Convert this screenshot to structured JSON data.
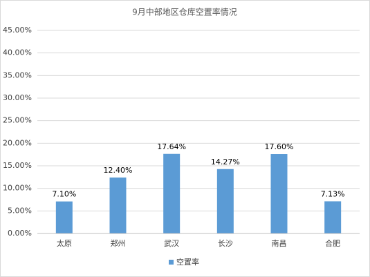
{
  "chart_data": {
    "type": "bar",
    "title": "9月中部地区仓库空置率情况",
    "categories": [
      "太原",
      "郑州",
      "武汉",
      "长沙",
      "南昌",
      "合肥"
    ],
    "series": [
      {
        "name": "空置率",
        "color": "#5b9bd5",
        "values": [
          7.1,
          12.4,
          17.64,
          14.27,
          17.6,
          7.13
        ],
        "value_labels": [
          "7.10%",
          "12.40%",
          "17.64%",
          "14.27%",
          "17.60%",
          "7.13%"
        ]
      }
    ],
    "ylim": [
      0,
      45
    ],
    "yticks": [
      {
        "value": 0,
        "label": "0.00%"
      },
      {
        "value": 5,
        "label": "5.00%"
      },
      {
        "value": 10,
        "label": "10.00%"
      },
      {
        "value": 15,
        "label": "15.00%"
      },
      {
        "value": 20,
        "label": "20.00%"
      },
      {
        "value": 25,
        "label": "25.00%"
      },
      {
        "value": 30,
        "label": "30.00%"
      },
      {
        "value": 35,
        "label": "35.00%"
      },
      {
        "value": 40,
        "label": "40.00%"
      },
      {
        "value": 45,
        "label": "45.00%"
      }
    ],
    "grid": true,
    "legend": "bottom"
  }
}
